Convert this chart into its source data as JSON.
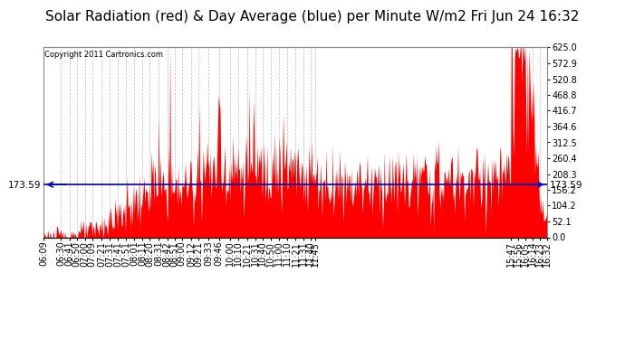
{
  "title": "Solar Radiation (red) & Day Average (blue) per Minute W/m2 Fri Jun 24 16:32",
  "copyright": "Copyright 2011 Cartronics.com",
  "avg_value": 173.59,
  "y_max": 625.0,
  "y_min": 0.0,
  "y_ticks": [
    0.0,
    52.1,
    104.2,
    156.2,
    208.3,
    260.4,
    312.5,
    364.6,
    416.7,
    468.8,
    520.8,
    572.9,
    625.0
  ],
  "fill_color": "#FF0000",
  "line_color": "#0000BB",
  "background_color": "#FFFFFF",
  "grid_color": "#BBBBBB",
  "x_tick_labels": [
    "06:09",
    "06:30",
    "06:41",
    "06:50",
    "07:00",
    "07:09",
    "07:21",
    "07:31",
    "07:41",
    "07:51",
    "08:01",
    "08:11",
    "08:20",
    "08:31",
    "08:42",
    "08:51",
    "09:00",
    "09:12",
    "09:21",
    "09:33",
    "09:46",
    "10:00",
    "10:10",
    "10:21",
    "10:31",
    "10:40",
    "10:50",
    "11:00",
    "11:10",
    "11:21",
    "11:31",
    "11:40",
    "11:45",
    "15:47",
    "15:56",
    "16:05",
    "16:14",
    "16:23",
    "16:32"
  ],
  "title_fontsize": 11,
  "tick_fontsize": 7,
  "copyright_fontsize": 6,
  "avg_fontsize": 7.5
}
